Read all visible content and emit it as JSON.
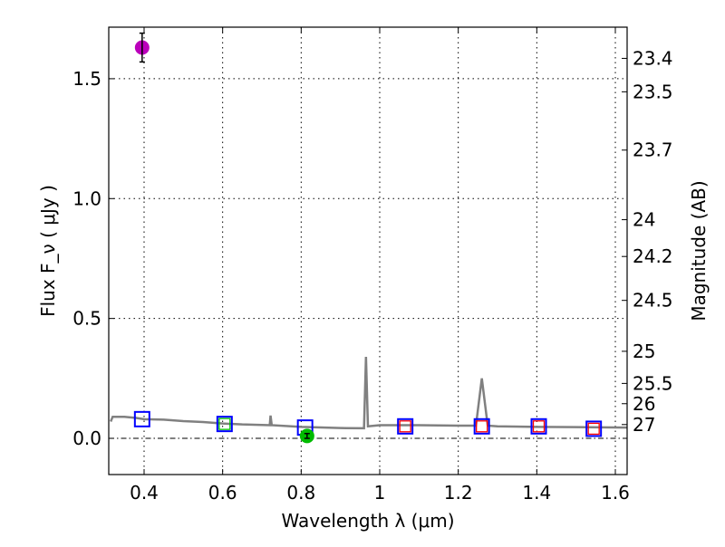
{
  "chart_data": {
    "type": "line",
    "title": "",
    "xlabel": "Wavelength  λ (μm)",
    "ylabel": "Flux  F_ν  ( μJy )",
    "y2label": "Magnitude (AB)",
    "xlim": [
      0.31,
      1.63
    ],
    "ylim": [
      -0.151,
      1.715
    ],
    "grid": true,
    "x_ticks": [
      {
        "v": 0.4,
        "label": "0.4"
      },
      {
        "v": 0.6,
        "label": "0.6"
      },
      {
        "v": 0.8,
        "label": "0.8"
      },
      {
        "v": 1.0,
        "label": "1"
      },
      {
        "v": 1.2,
        "label": "1.2"
      },
      {
        "v": 1.4,
        "label": "1.4"
      },
      {
        "v": 1.6,
        "label": "1.6"
      }
    ],
    "y_ticks": [
      {
        "v": 0.0,
        "label": "0.0"
      },
      {
        "v": 0.5,
        "label": "0.5"
      },
      {
        "v": 1.0,
        "label": "1.0"
      },
      {
        "v": 1.5,
        "label": "1.5"
      }
    ],
    "mag_ticks": [
      "23.4",
      "23.5",
      "23.7",
      "24",
      "24.2",
      "24.5",
      "25",
      "25.5",
      "26",
      "27"
    ],
    "spectrum": {
      "name": "model spectrum",
      "color": "#808080",
      "x": [
        0.315,
        0.32,
        0.35,
        0.38,
        0.4,
        0.45,
        0.5,
        0.55,
        0.6,
        0.65,
        0.72,
        0.722,
        0.725,
        0.8,
        0.9,
        0.96,
        0.965,
        0.97,
        1.0,
        1.1,
        1.2,
        1.245,
        1.26,
        1.275,
        1.3,
        1.4,
        1.5,
        1.63
      ],
      "y": [
        0.07,
        0.09,
        0.09,
        0.085,
        0.08,
        0.078,
        0.072,
        0.068,
        0.062,
        0.058,
        0.055,
        0.095,
        0.055,
        0.048,
        0.043,
        0.042,
        0.34,
        0.05,
        0.055,
        0.055,
        0.053,
        0.053,
        0.25,
        0.053,
        0.05,
        0.048,
        0.047,
        0.045
      ]
    },
    "model_photometry_blue": {
      "color": "#0000ff",
      "x": [
        0.395,
        0.605,
        0.81,
        1.065,
        1.26,
        1.405,
        1.545
      ],
      "y": [
        0.08,
        0.06,
        0.045,
        0.05,
        0.05,
        0.05,
        0.04
      ]
    },
    "model_photometry_green": {
      "color": "#00c000",
      "x": [
        0.605
      ],
      "y": [
        0.06
      ]
    },
    "model_photometry_red": {
      "color": "#ff0000",
      "x": [
        1.065,
        1.26,
        1.405,
        1.545
      ],
      "y": [
        0.05,
        0.05,
        0.05,
        0.04
      ]
    },
    "observed": [
      {
        "color": "#bb00bb",
        "x": 0.395,
        "y": 1.63,
        "err": 0.06
      },
      {
        "color": "#00bb00",
        "x": 0.815,
        "y": 0.01,
        "err": 0.01
      }
    ]
  }
}
